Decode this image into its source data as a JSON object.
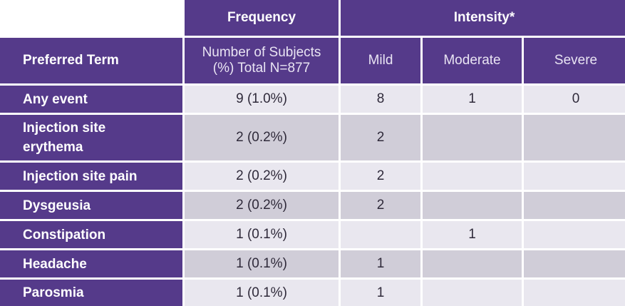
{
  "header": {
    "frequency": "Frequency",
    "intensity": "Intensity*",
    "preferred_term": "Preferred Term",
    "num_subjects": "Number of Subjects (%) Total N=877",
    "mild": "Mild",
    "moderate": "Moderate",
    "severe": "Severe"
  },
  "rows": [
    {
      "term": "Any event",
      "freq": "9 (1.0%)",
      "mild": "8",
      "moderate": "1",
      "severe": "0"
    },
    {
      "term": "Injection site erythema",
      "freq": "2 (0.2%)",
      "mild": "2",
      "moderate": "",
      "severe": ""
    },
    {
      "term": "Injection site pain",
      "freq": "2 (0.2%)",
      "mild": "2",
      "moderate": "",
      "severe": ""
    },
    {
      "term": "Dysgeusia",
      "freq": "2 (0.2%)",
      "mild": "2",
      "moderate": "",
      "severe": ""
    },
    {
      "term": "Constipation",
      "freq": "1 (0.1%)",
      "mild": "",
      "moderate": "1",
      "severe": ""
    },
    {
      "term": "Headache",
      "freq": "1 (0.1%)",
      "mild": "1",
      "moderate": "",
      "severe": ""
    },
    {
      "term": "Parosmia",
      "freq": "1 (0.1%)",
      "mild": "1",
      "moderate": "",
      "severe": ""
    }
  ]
}
